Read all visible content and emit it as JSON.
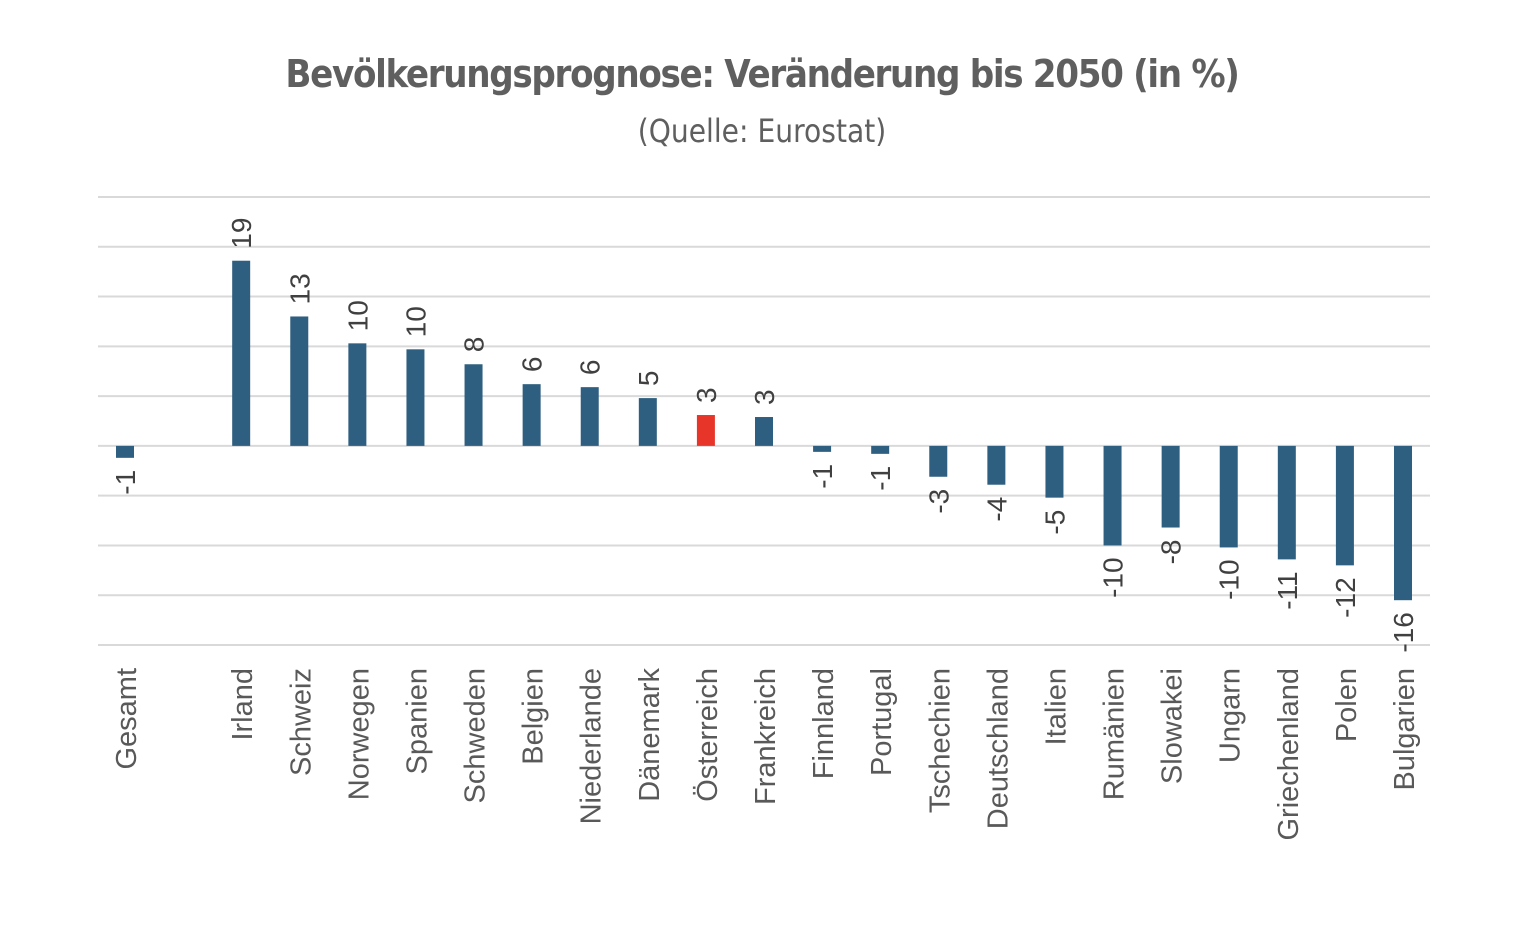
{
  "chart_data": {
    "type": "bar",
    "title": "Bevölkerungsprognose: Veränderung bis 2050 (in %)",
    "subtitle": "(Quelle: Eurostat)",
    "xlabel": "",
    "ylabel": "",
    "ylim": [
      -20,
      25
    ],
    "ytick_step": 5,
    "grid": true,
    "y_axis_labels_shown": false,
    "legend": "none",
    "categories": [
      "Gesamt",
      "",
      "Irland",
      "Schweiz",
      "Norwegen",
      "Spanien",
      "Schweden",
      "Belgien",
      "Niederlande",
      "Dänemark",
      "Österreich",
      "Frankreich",
      "Finnland",
      "Portugal",
      "Tschechien",
      "Deutschland",
      "Italien",
      "Rumänien",
      "Slowakei",
      "Ungarn",
      "Griechenland",
      "Polen",
      "Bulgarien"
    ],
    "values": [
      -1.2,
      null,
      18.6,
      13.0,
      10.3,
      9.7,
      8.2,
      6.2,
      5.9,
      4.8,
      3.1,
      2.9,
      -0.6,
      -0.8,
      -3.1,
      -3.9,
      -5.2,
      -10.0,
      -8.2,
      -10.2,
      -11.4,
      -12.0,
      -15.5
    ],
    "data_labels": [
      "-1",
      "",
      "19",
      "13",
      "10",
      "10",
      "8",
      "6",
      "6",
      "5",
      "3",
      "3",
      "-1",
      "-1",
      "-3",
      "-4",
      "-5",
      "-10",
      "-8",
      "-10",
      "-11",
      "-12",
      "-16"
    ],
    "colors": {
      "default": "#2e5f80",
      "highlight": "#e8352a",
      "gridline": "#d9d9d9",
      "label_text": "#404040",
      "category_text": "#595959",
      "title_text": "#5f5f5f"
    },
    "highlighted_category": "Österreich"
  }
}
